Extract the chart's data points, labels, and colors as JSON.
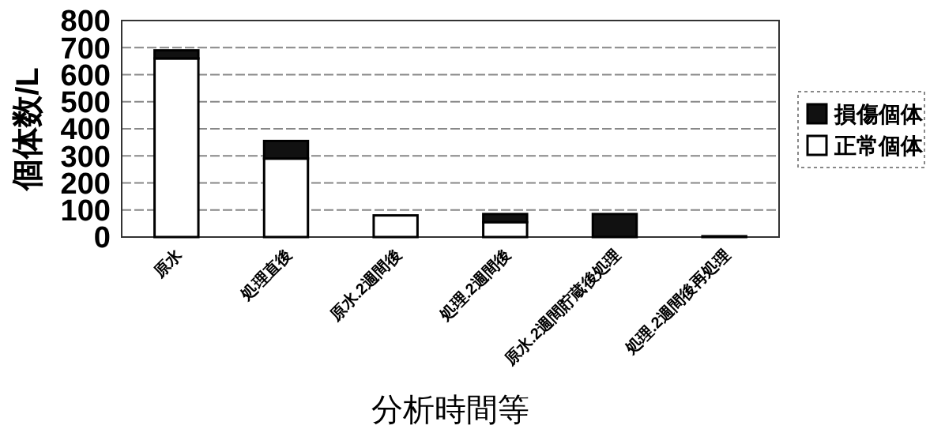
{
  "chart_data": {
    "type": "bar",
    "stacked": true,
    "xlabel": "分析時間等",
    "ylabel": "個体数/L",
    "categories": [
      "原水",
      "処理直後",
      "原水.2週間後",
      "処理.2週間後",
      "原水.2週間貯蔵後処理",
      "処理.2週間後再処理"
    ],
    "series": [
      {
        "name": "正常個体",
        "color": "#ffffff",
        "values": [
          660,
          290,
          80,
          55,
          0,
          0
        ]
      },
      {
        "name": "損傷個体",
        "color": "#111111",
        "values": [
          30,
          65,
          0,
          30,
          85,
          3
        ]
      }
    ],
    "ylim": [
      0,
      800
    ],
    "yticks": [
      0,
      100,
      200,
      300,
      400,
      500,
      600,
      700,
      800
    ],
    "grid": "y",
    "legend": "right"
  }
}
